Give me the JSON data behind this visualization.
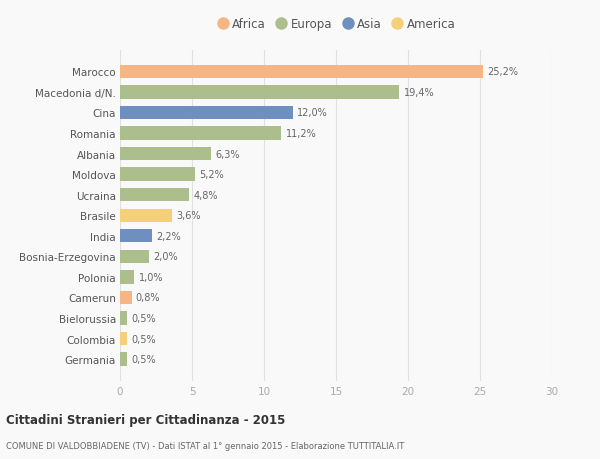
{
  "categories": [
    "Germania",
    "Colombia",
    "Bielorussia",
    "Camerun",
    "Polonia",
    "Bosnia-Erzegovina",
    "India",
    "Brasile",
    "Ucraina",
    "Moldova",
    "Albania",
    "Romania",
    "Cina",
    "Macedonia d/N.",
    "Marocco"
  ],
  "values": [
    0.5,
    0.5,
    0.5,
    0.8,
    1.0,
    2.0,
    2.2,
    3.6,
    4.8,
    5.2,
    6.3,
    11.2,
    12.0,
    19.4,
    25.2
  ],
  "labels": [
    "0,5%",
    "0,5%",
    "0,5%",
    "0,8%",
    "1,0%",
    "2,0%",
    "2,2%",
    "3,6%",
    "4,8%",
    "5,2%",
    "6,3%",
    "11,2%",
    "12,0%",
    "19,4%",
    "25,2%"
  ],
  "continents": [
    "Europa",
    "America",
    "Europa",
    "Africa",
    "Europa",
    "Europa",
    "Asia",
    "America",
    "Europa",
    "Europa",
    "Europa",
    "Europa",
    "Asia",
    "Europa",
    "Africa"
  ],
  "colors": {
    "Africa": "#F5B584",
    "Europa": "#ABBE8B",
    "Asia": "#6E8FC0",
    "America": "#F5D07A"
  },
  "title": "Cittadini Stranieri per Cittadinanza - 2015",
  "subtitle": "COMUNE DI VALDOBBIADENE (TV) - Dati ISTAT al 1° gennaio 2015 - Elaborazione TUTTITALIA.IT",
  "xlim": [
    0,
    30
  ],
  "xticks": [
    0,
    5,
    10,
    15,
    20,
    25,
    30
  ],
  "background_color": "#f9f9f9",
  "grid_color": "#e0e0e0"
}
